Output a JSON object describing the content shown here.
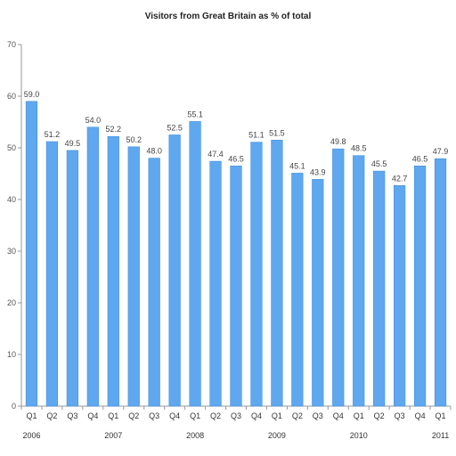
{
  "chart_data": {
    "type": "bar",
    "title": "Visitors from Great Britain as % of total",
    "xlabel": "",
    "ylabel": "",
    "ylim": [
      0,
      70
    ],
    "yticks": [
      0,
      10,
      20,
      30,
      40,
      50,
      60,
      70
    ],
    "categories": [
      "Q1 2006",
      "Q2 2006",
      "Q3 2006",
      "Q4 2006",
      "Q1 2007",
      "Q2 2007",
      "Q3 2007",
      "Q4 2007",
      "Q1 2008",
      "Q2 2008",
      "Q3 2008",
      "Q4 2008",
      "Q1 2009",
      "Q2 2009",
      "Q3 2009",
      "Q4 2009",
      "Q1 2010",
      "Q2 2010",
      "Q3 2010",
      "Q4 2010",
      "Q1 2011"
    ],
    "quarter_labels": [
      "Q1",
      "Q2",
      "Q3",
      "Q4",
      "Q1",
      "Q2",
      "Q3",
      "Q4",
      "Q1",
      "Q2",
      "Q3",
      "Q4",
      "Q1",
      "Q2",
      "Q3",
      "Q4",
      "Q1",
      "Q2",
      "Q3",
      "Q4",
      "Q1"
    ],
    "year_labels": [
      "2006",
      "",
      "",
      "",
      "2007",
      "",
      "",
      "",
      "2008",
      "",
      "",
      "",
      "2009",
      "",
      "",
      "",
      "2010",
      "",
      "",
      "",
      "2011"
    ],
    "values": [
      59.0,
      51.2,
      49.5,
      54.0,
      52.2,
      50.2,
      48.0,
      52.5,
      55.1,
      47.4,
      46.5,
      51.1,
      51.5,
      45.1,
      43.9,
      49.8,
      48.5,
      45.5,
      42.7,
      46.5,
      47.9
    ],
    "data_labels": [
      "59.0",
      "51.2",
      "49.5",
      "54.0",
      "52.2",
      "50.2",
      "48.0",
      "52.5",
      "55.1",
      "47.4",
      "46.5",
      "51.1",
      "51.5",
      "45.1",
      "43.9",
      "49.8",
      "48.5",
      "45.5",
      "42.7",
      "46.5",
      "47.9"
    ],
    "bar_color": "#5fa8f0",
    "bar_edge_color": "#3f8fdf",
    "axis_color": "#999999",
    "grid": false,
    "legend": "none"
  }
}
